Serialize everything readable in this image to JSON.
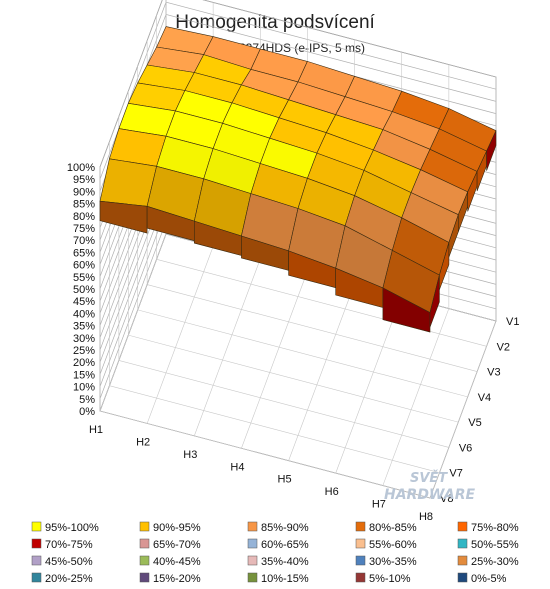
{
  "chart_data": {
    "type": "surface3d",
    "title": "Homogenita podsvícení",
    "subtitle": "iiyama XB2374HDS  (e-IPS, 5 ms)",
    "x_categories": [
      "H1",
      "H2",
      "H3",
      "H4",
      "H5",
      "H6",
      "H7",
      "H8"
    ],
    "y_categories": [
      "V1",
      "V2",
      "V3",
      "V4",
      "V5",
      "V6",
      "V7",
      "V8"
    ],
    "z_ticks": [
      "0%",
      "5%",
      "10%",
      "15%",
      "20%",
      "25%",
      "30%",
      "35%",
      "40%",
      "45%",
      "50%",
      "55%",
      "60%",
      "65%",
      "70%",
      "75%",
      "80%",
      "85%",
      "90%",
      "95%",
      "100%"
    ],
    "zlim": [
      0,
      100
    ],
    "grid": true,
    "legend_position": "bottom",
    "values": [
      [
        86,
        93,
        95,
        95,
        93,
        90,
        87,
        85
      ],
      [
        89,
        95,
        97,
        97,
        95,
        92,
        89,
        86
      ],
      [
        88,
        95,
        97,
        97,
        95,
        92,
        88,
        86
      ],
      [
        87,
        94,
        96,
        96,
        94,
        91,
        88,
        86
      ],
      [
        86,
        93,
        95,
        95,
        93,
        90,
        87,
        85
      ],
      [
        84,
        91,
        93,
        93,
        91,
        89,
        86,
        84
      ],
      [
        81,
        86,
        89,
        89,
        88,
        86,
        84,
        82
      ],
      [
        76,
        81,
        84,
        85,
        84,
        82,
        80,
        78
      ]
    ],
    "legend": [
      {
        "label": "95%-100%",
        "color": "#ffff00"
      },
      {
        "label": "90%-95%",
        "color": "#ffc000"
      },
      {
        "label": "85%-90%",
        "color": "#f79646"
      },
      {
        "label": "80%-85%",
        "color": "#e46c0a"
      },
      {
        "label": "75%-80%",
        "color": "#ff6600"
      },
      {
        "label": "70%-75%",
        "color": "#c00000"
      },
      {
        "label": "65%-70%",
        "color": "#d99694"
      },
      {
        "label": "60%-65%",
        "color": "#95b3d7"
      },
      {
        "label": "55%-60%",
        "color": "#fabf8f"
      },
      {
        "label": "50%-55%",
        "color": "#31b6c4"
      },
      {
        "label": "45%-50%",
        "color": "#b1a0c7"
      },
      {
        "label": "40%-45%",
        "color": "#9bbb59"
      },
      {
        "label": "35%-40%",
        "color": "#e6b9b8"
      },
      {
        "label": "30%-35%",
        "color": "#4f81bd"
      },
      {
        "label": "25%-30%",
        "color": "#e38b3d"
      },
      {
        "label": "20%-25%",
        "color": "#31859c"
      },
      {
        "label": "15%-20%",
        "color": "#604a7b"
      },
      {
        "label": "10%-15%",
        "color": "#76923c"
      },
      {
        "label": "5%-10%",
        "color": "#953735"
      },
      {
        "label": "0%-5%",
        "color": "#1f497d"
      }
    ]
  },
  "watermark": {
    "line1": "SVĚT",
    "line2": "HARDWARE"
  }
}
